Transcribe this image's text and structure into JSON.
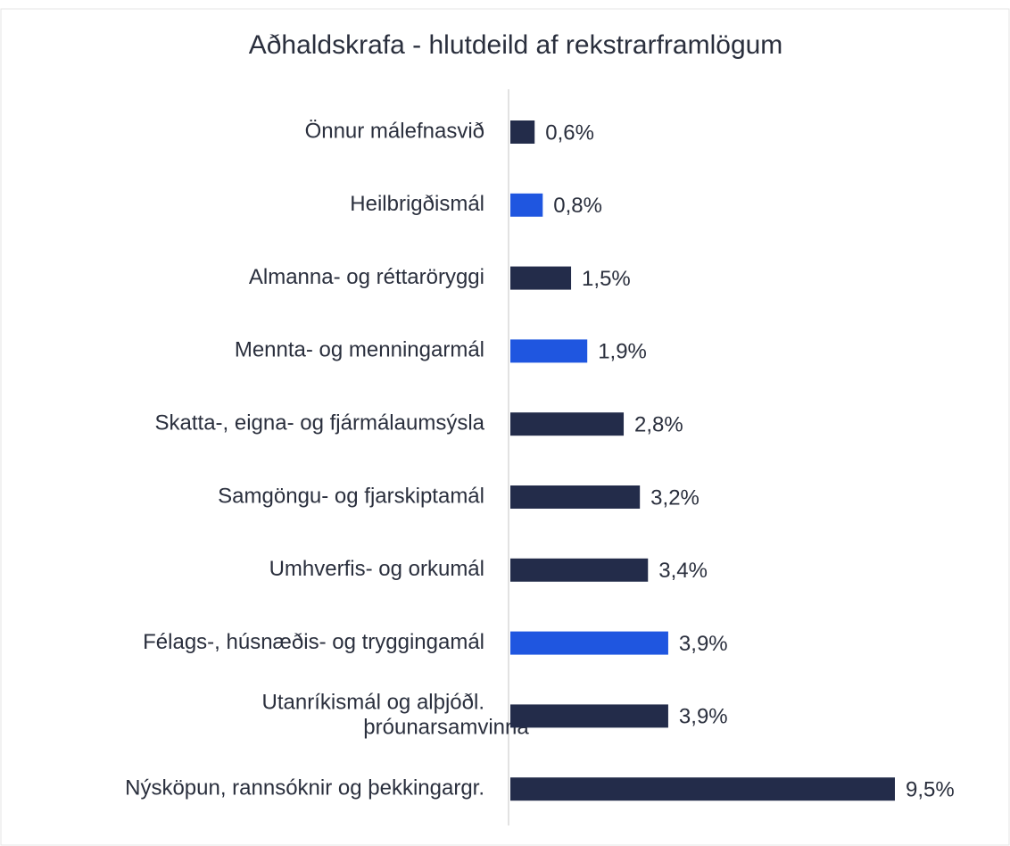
{
  "chart_data": {
    "type": "barh",
    "title": "Aðhaldskrafa - hlutdeild af rekstrarframlögum",
    "categories": [
      "Önnur málefnasvið",
      "Heilbrigðismál",
      "Almanna- og réttaröryggi",
      "Mennta- og menningarmál",
      "Skatta-, eigna- og fjármálaumsýsla",
      "Samgöngu- og fjarskiptamál",
      "Umhverfis- og orkumál",
      "Félags-, húsnæðis- og tryggingamál",
      [
        "Utanríkismál og alþjóðl.",
        "þróunarsamvinna"
      ],
      "Nýsköpun, rannsóknir og þekkingargr."
    ],
    "values": [
      0.6,
      0.8,
      1.5,
      1.9,
      2.8,
      3.2,
      3.4,
      3.9,
      3.9,
      9.5
    ],
    "value_labels": [
      "0,6%",
      "0,8%",
      "1,5%",
      "1,9%",
      "2,8%",
      "3,2%",
      "3,4%",
      "3,9%",
      "3,9%",
      "9,5%"
    ],
    "colors": [
      "#232c4a",
      "#1f56e0",
      "#232c4a",
      "#1f56e0",
      "#232c4a",
      "#232c4a",
      "#232c4a",
      "#1f56e0",
      "#232c4a",
      "#232c4a"
    ]
  }
}
